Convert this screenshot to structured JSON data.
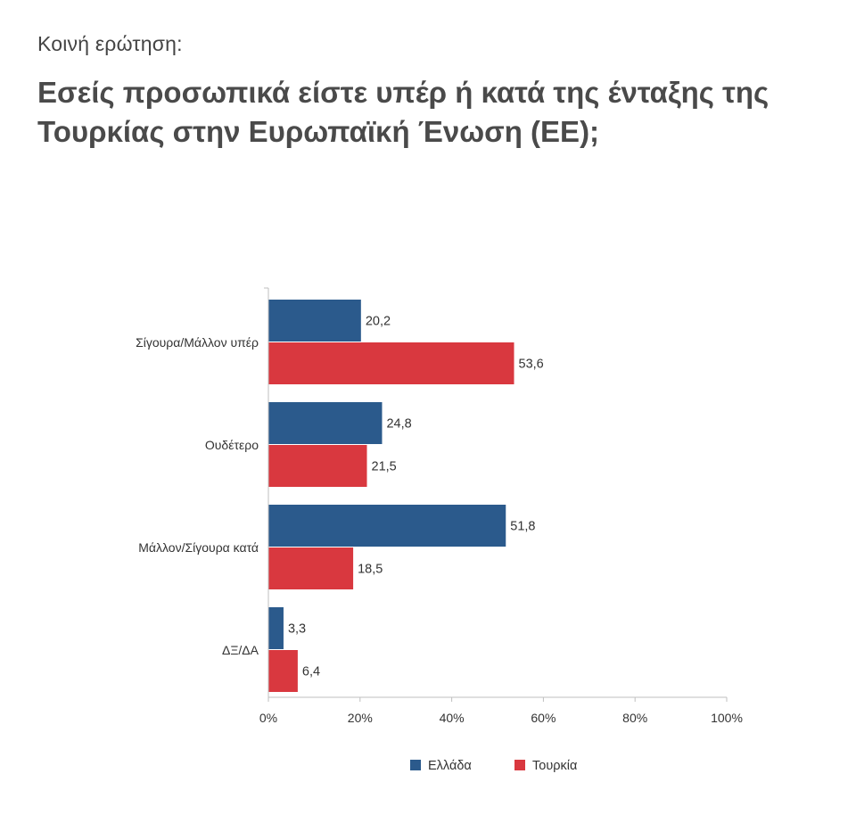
{
  "header": {
    "subtitle": "Κοινή ερώτηση:",
    "title": "Εσείς προσωπικά είστε υπέρ ή κατά της ένταξης της Τουρκίας στην Ευρωπαϊκή Ένωση (ΕΕ);"
  },
  "colors": {
    "greece": "#2b5a8c",
    "turkey": "#d9383f",
    "axis": "#bfbfbf"
  },
  "chart_data": {
    "type": "bar",
    "orientation": "horizontal",
    "title": "Εσείς προσωπικά είστε υπέρ ή κατά της ένταξης της Τουρκίας στην Ευρωπαϊκή Ένωση (ΕΕ);",
    "subtitle": "Κοινή ερώτηση:",
    "xlabel": "",
    "ylabel": "",
    "xlim": [
      0,
      100
    ],
    "xticks": [
      0,
      20,
      40,
      60,
      80,
      100
    ],
    "xtick_labels": [
      "0%",
      "20%",
      "40%",
      "60%",
      "80%",
      "100%"
    ],
    "categories": [
      "Σίγουρα/Μάλλον υπέρ",
      "Ουδέτερο",
      "Μάλλον/Σίγουρα κατά",
      "ΔΞ/ΔΑ"
    ],
    "series": [
      {
        "name": "Ελλάδα",
        "color": "#2b5a8c",
        "values": [
          20.2,
          24.8,
          51.8,
          3.3
        ],
        "value_labels": [
          "20,2",
          "24,8",
          "51,8",
          "3,3"
        ]
      },
      {
        "name": "Τουρκία",
        "color": "#d9383f",
        "values": [
          53.6,
          21.5,
          18.5,
          6.4
        ],
        "value_labels": [
          "53,6",
          "21,5",
          "18,5",
          "6,4"
        ]
      }
    ],
    "grid": false,
    "legend_position": "bottom"
  }
}
